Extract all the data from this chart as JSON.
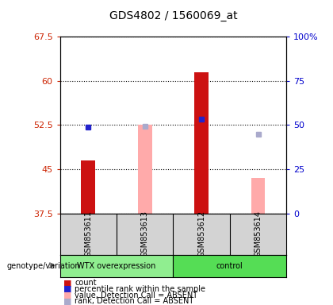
{
  "title": "GDS4802 / 1560069_at",
  "samples": [
    "GSM853611",
    "GSM853613",
    "GSM853612",
    "GSM853614"
  ],
  "ylim_left": [
    37.5,
    67.5
  ],
  "ylim_right": [
    0,
    100
  ],
  "yticks_left": [
    37.5,
    45.0,
    52.5,
    60.0,
    67.5
  ],
  "yticks_right": [
    0,
    25,
    50,
    75,
    100
  ],
  "ytick_labels_left": [
    "37.5",
    "45",
    "52.5",
    "60",
    "67.5"
  ],
  "ytick_labels_right": [
    "0",
    "25",
    "50",
    "75",
    "100%"
  ],
  "left_axis_color": "#cc2200",
  "right_axis_color": "#0000cc",
  "red_bars": {
    "GSM853611": [
      37.5,
      46.5
    ],
    "GSM853613": null,
    "GSM853612": [
      37.5,
      61.5
    ],
    "GSM853614": null
  },
  "blue_squares": {
    "GSM853611": 52.2,
    "GSM853613": null,
    "GSM853612": 53.5,
    "GSM853614": null
  },
  "pink_bars": {
    "GSM853611": null,
    "GSM853613": [
      37.5,
      52.5
    ],
    "GSM853612": null,
    "GSM853614": [
      37.5,
      43.5
    ]
  },
  "light_blue_squares": {
    "GSM853611": null,
    "GSM853613": 52.3,
    "GSM853612": null,
    "GSM853614": 51.0
  },
  "red_bar_color": "#cc1111",
  "blue_square_color": "#2222cc",
  "pink_bar_color": "#ffaaaa",
  "light_blue_square_color": "#aaaacc",
  "group1_label": "WTX overexpression",
  "group2_label": "control",
  "group1_color": "#90ee90",
  "group2_color": "#55dd55",
  "group_label": "genotype/variation",
  "legend_items": [
    {
      "label": "count",
      "color": "#cc1111"
    },
    {
      "label": "percentile rank within the sample",
      "color": "#2222cc"
    },
    {
      "label": "value, Detection Call = ABSENT",
      "color": "#ffaaaa"
    },
    {
      "label": "rank, Detection Call = ABSENT",
      "color": "#aaaacc"
    }
  ],
  "bar_width": 0.25
}
